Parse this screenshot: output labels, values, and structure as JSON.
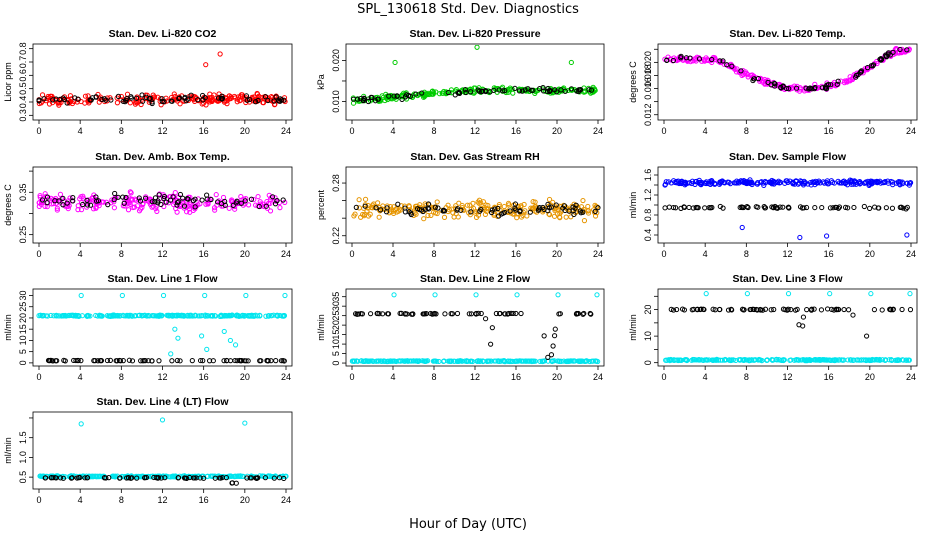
{
  "figure": {
    "title": "SPL_130618  Std. Dev. Diagnostics",
    "xlabel": "Hour of Day (UTC)"
  },
  "chart_data": [
    {
      "id": "co2",
      "type": "scatter",
      "title": "Stan. Dev. Li-820 CO2",
      "ylabel": "Licor ppm",
      "xlim": [
        0,
        24
      ],
      "xticks": [
        0,
        4,
        8,
        12,
        16,
        20,
        24
      ],
      "ylim": [
        0.28,
        0.82
      ],
      "yticks": [
        0.3,
        0.4,
        0.5,
        0.6,
        0.7,
        0.8
      ],
      "ytick_labels": [
        "0.3",
        "0.4",
        "0.5",
        "0.6",
        "0.7",
        "0.8"
      ],
      "series": [
        {
          "color": "#ff0000",
          "x_range": [
            0,
            24
          ],
          "baseline": 0.42,
          "spread": 0.05
        },
        {
          "color": "#000000",
          "x_range": [
            0,
            24
          ],
          "baseline": 0.42,
          "spread": 0.04
        }
      ],
      "outliers": [
        {
          "x": 17.6,
          "y": 0.76,
          "color": "#ff0000"
        },
        {
          "x": 16.2,
          "y": 0.68,
          "color": "#ff0000"
        }
      ]
    },
    {
      "id": "press",
      "type": "scatter",
      "title": "Stan. Dev. Li-820 Pressure",
      "ylabel": "kPa",
      "xlim": [
        0,
        24
      ],
      "xticks": [
        0,
        4,
        8,
        12,
        16,
        20,
        24
      ],
      "ylim": [
        0.006,
        0.0235
      ],
      "yticks": [
        0.01,
        0.015,
        0.02
      ],
      "ytick_labels": [
        "0.010",
        "",
        "0.020"
      ],
      "series": [
        {
          "color": "#00cc00",
          "x_range": [
            0,
            24
          ],
          "baseline": 0.0115,
          "spread": 0.001
        },
        {
          "color": "#000000",
          "x_range": [
            0,
            24
          ],
          "baseline": 0.0115,
          "spread": 0.001
        }
      ],
      "outliers": [
        {
          "x": 12.2,
          "y": 0.0232,
          "color": "#00cc00"
        },
        {
          "x": 4.2,
          "y": 0.0195,
          "color": "#00cc00"
        },
        {
          "x": 21.4,
          "y": 0.0195,
          "color": "#00cc00"
        }
      ]
    },
    {
      "id": "temp",
      "type": "scatter",
      "title": "Stan. Dev. Li-820 Temp.",
      "ylabel": "degrees C",
      "xlim": [
        0,
        24
      ],
      "xticks": [
        0,
        4,
        8,
        12,
        16,
        20,
        24
      ],
      "ylim": [
        0.0115,
        0.0225
      ],
      "yticks": [
        0.012,
        0.014,
        0.016,
        0.018,
        0.02,
        0.022
      ],
      "ytick_labels": [
        "0.012",
        "",
        "0.016",
        "0.018",
        "0.020",
        ""
      ],
      "series": [
        {
          "color": "#ff00ff",
          "x_range": [
            0,
            24
          ],
          "baseline": 0.018,
          "spread": 0.0006
        },
        {
          "color": "#000000",
          "x_range": [
            0,
            24
          ],
          "baseline": 0.018,
          "spread": 0.0006
        }
      ],
      "outliers": []
    },
    {
      "id": "amb",
      "type": "scatter",
      "title": "Stan. Dev. Amb. Box Temp.",
      "ylabel": "degrees C",
      "xlim": [
        0,
        24
      ],
      "xticks": [
        0,
        4,
        8,
        12,
        16,
        20,
        24
      ],
      "ylim": [
        0.235,
        0.405
      ],
      "yticks": [
        0.25,
        0.3,
        0.35,
        0.4
      ],
      "ytick_labels": [
        "0.25",
        "",
        "0.35",
        ""
      ],
      "series": [
        {
          "color": "#ff00ff",
          "x_range": [
            0,
            24
          ],
          "baseline": 0.325,
          "spread": 0.03
        },
        {
          "color": "#000000",
          "x_range": [
            0,
            24
          ],
          "baseline": 0.33,
          "spread": 0.02
        }
      ],
      "outliers": []
    },
    {
      "id": "rh",
      "type": "scatter",
      "title": "Stan. Dev. Gas Stream RH",
      "ylabel": "percent",
      "xlim": [
        0,
        24
      ],
      "xticks": [
        0,
        4,
        8,
        12,
        16,
        20,
        24
      ],
      "ylim": [
        0.214,
        0.296
      ],
      "yticks": [
        0.22,
        0.24,
        0.26,
        0.28
      ],
      "ytick_labels": [
        "0.22",
        "",
        "",
        "0.28"
      ],
      "series": [
        {
          "color": "#e69500",
          "x_range": [
            0,
            24
          ],
          "baseline": 0.25,
          "spread": 0.014
        },
        {
          "color": "#000000",
          "x_range": [
            0,
            24
          ],
          "baseline": 0.25,
          "spread": 0.01
        }
      ],
      "outliers": []
    },
    {
      "id": "sflow",
      "type": "scatter",
      "title": "Stan. Dev. Sample Flow",
      "ylabel": "ml/min",
      "xlim": [
        0,
        24
      ],
      "xticks": [
        0,
        4,
        8,
        12,
        16,
        20,
        24
      ],
      "ylim": [
        0.28,
        1.72
      ],
      "yticks": [
        0.4,
        0.6,
        0.8,
        1.0,
        1.2,
        1.4,
        1.6
      ],
      "ytick_labels": [
        "0.4",
        "",
        "0.8",
        "",
        "1.2",
        "",
        "1.6"
      ],
      "series": [
        {
          "color": "#0000ff",
          "x_range": [
            0,
            24
          ],
          "baseline": 1.45,
          "spread": 0.07
        },
        {
          "color": "#000000",
          "x_range": [
            0,
            24
          ],
          "baseline": 0.95,
          "spread": 0.03
        }
      ],
      "outliers": [
        {
          "x": 13.2,
          "y": 0.35,
          "color": "#0000ff"
        },
        {
          "x": 15.8,
          "y": 0.38,
          "color": "#0000ff"
        },
        {
          "x": 23.6,
          "y": 0.4,
          "color": "#0000ff"
        },
        {
          "x": 7.6,
          "y": 0.55,
          "color": "#0000ff"
        }
      ]
    },
    {
      "id": "l1",
      "type": "scatter",
      "title": "Stan. Dev. Line 1 Flow",
      "ylabel": "ml/min",
      "xlim": [
        0,
        24
      ],
      "xticks": [
        0,
        4,
        8,
        12,
        16,
        20,
        24
      ],
      "ylim": [
        -0.5,
        32
      ],
      "yticks": [
        0,
        5,
        10,
        15,
        20,
        25,
        30
      ],
      "ytick_labels": [
        "0",
        "5",
        "10",
        "15",
        "20",
        "25",
        "30"
      ],
      "series": [
        {
          "color": "#00e5ee",
          "x_range": [
            0,
            24
          ],
          "baseline": 21,
          "spread": 0.4
        },
        {
          "color": "#000000",
          "x_range": [
            0,
            24
          ],
          "baseline": 1,
          "spread": 0.2
        }
      ],
      "outliers": [
        {
          "x": 4.1,
          "y": 30,
          "color": "#00e5ee"
        },
        {
          "x": 8.1,
          "y": 30,
          "color": "#00e5ee"
        },
        {
          "x": 12.1,
          "y": 30,
          "color": "#00e5ee"
        },
        {
          "x": 16.1,
          "y": 30,
          "color": "#00e5ee"
        },
        {
          "x": 20.1,
          "y": 30,
          "color": "#00e5ee"
        },
        {
          "x": 23.9,
          "y": 30,
          "color": "#00e5ee"
        },
        {
          "x": 13.2,
          "y": 15,
          "color": "#00e5ee"
        },
        {
          "x": 13.5,
          "y": 11,
          "color": "#00e5ee"
        },
        {
          "x": 15.8,
          "y": 12,
          "color": "#00e5ee"
        },
        {
          "x": 16.3,
          "y": 6,
          "color": "#00e5ee"
        },
        {
          "x": 18.6,
          "y": 10,
          "color": "#00e5ee"
        },
        {
          "x": 19.1,
          "y": 8,
          "color": "#00e5ee"
        },
        {
          "x": 18.0,
          "y": 14,
          "color": "#00e5ee"
        },
        {
          "x": 12.8,
          "y": 4,
          "color": "#00e5ee"
        }
      ]
    },
    {
      "id": "l2",
      "type": "scatter",
      "title": "Stan. Dev. Line 2 Flow",
      "ylabel": "ml/min",
      "xlim": [
        0,
        24
      ],
      "xticks": [
        0,
        4,
        8,
        12,
        16,
        20,
        24
      ],
      "ylim": [
        -0.5,
        38
      ],
      "yticks": [
        0,
        5,
        10,
        15,
        20,
        25,
        30,
        35
      ],
      "ytick_labels": [
        "0",
        "5",
        "10",
        "15",
        "20",
        "25",
        "30",
        "35"
      ],
      "series": [
        {
          "color": "#00e5ee",
          "x_range": [
            0,
            24
          ],
          "baseline": 1,
          "spread": 0.3
        },
        {
          "color": "#000000",
          "x_range": [
            0,
            24
          ],
          "baseline": 26,
          "spread": 0.4
        }
      ],
      "outliers": [
        {
          "x": 4.1,
          "y": 36,
          "color": "#00e5ee"
        },
        {
          "x": 8.1,
          "y": 36,
          "color": "#00e5ee"
        },
        {
          "x": 12.1,
          "y": 36,
          "color": "#00e5ee"
        },
        {
          "x": 16.1,
          "y": 36,
          "color": "#00e5ee"
        },
        {
          "x": 20.1,
          "y": 36,
          "color": "#00e5ee"
        },
        {
          "x": 23.9,
          "y": 36,
          "color": "#00e5ee"
        }
      ]
    },
    {
      "id": "l3",
      "type": "scatter",
      "title": "Stan. Dev. Line 3 Flow",
      "ylabel": "ml/min",
      "xlim": [
        0,
        24
      ],
      "xticks": [
        0,
        4,
        8,
        12,
        16,
        20,
        24
      ],
      "ylim": [
        -0.5,
        27
      ],
      "yticks": [
        0,
        5,
        10,
        15,
        20,
        25
      ],
      "ytick_labels": [
        "0",
        "",
        "10",
        "",
        "20",
        ""
      ],
      "series": [
        {
          "color": "#00e5ee",
          "x_range": [
            0,
            24
          ],
          "baseline": 1,
          "spread": 0.3
        },
        {
          "color": "#000000",
          "x_range": [
            0,
            24
          ],
          "baseline": 20,
          "spread": 0.3
        }
      ],
      "outliers": [
        {
          "x": 4.1,
          "y": 26,
          "color": "#00e5ee"
        },
        {
          "x": 8.1,
          "y": 26,
          "color": "#00e5ee"
        },
        {
          "x": 12.1,
          "y": 26,
          "color": "#00e5ee"
        },
        {
          "x": 16.1,
          "y": 26,
          "color": "#00e5ee"
        },
        {
          "x": 20.1,
          "y": 26,
          "color": "#00e5ee"
        },
        {
          "x": 23.9,
          "y": 26,
          "color": "#00e5ee"
        }
      ]
    },
    {
      "id": "l4",
      "type": "scatter",
      "title": "Stan. Dev. Line 4 (LT) Flow",
      "ylabel": "ml/min",
      "xlim": [
        0,
        24
      ],
      "xticks": [
        0,
        4,
        8,
        12,
        16,
        20,
        24
      ],
      "ylim": [
        0.25,
        2.1
      ],
      "yticks": [
        0.5,
        1.0,
        1.5,
        2.0
      ],
      "ytick_labels": [
        "0.5",
        "1.0",
        "1.5",
        ""
      ],
      "series": [
        {
          "color": "#00e5ee",
          "x_range": [
            0,
            24
          ],
          "baseline": 0.52,
          "spread": 0.02
        },
        {
          "color": "#000000",
          "x_range": [
            0,
            24
          ],
          "baseline": 0.48,
          "spread": 0.02
        }
      ],
      "outliers": [
        {
          "x": 4.1,
          "y": 1.85,
          "color": "#00e5ee"
        },
        {
          "x": 12.0,
          "y": 1.95,
          "color": "#00e5ee"
        },
        {
          "x": 20.0,
          "y": 1.87,
          "color": "#00e5ee"
        }
      ]
    }
  ]
}
